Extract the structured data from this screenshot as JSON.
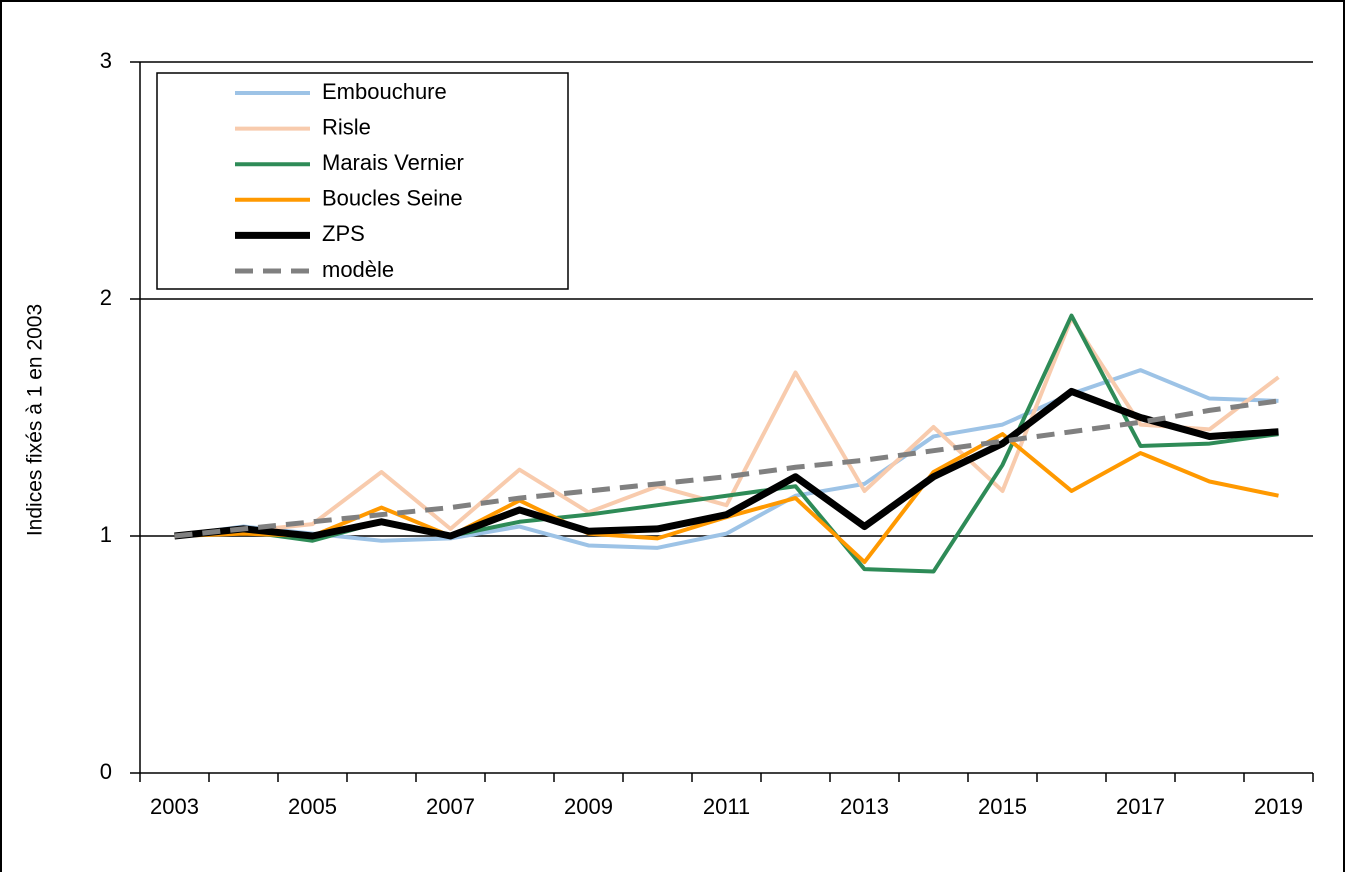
{
  "chart_data": {
    "type": "line",
    "y_label": "Indices fixés à 1 en 2003",
    "categories": [
      "2003",
      null,
      "2005",
      null,
      "2007",
      null,
      "2009",
      null,
      "2011",
      null,
      "2013",
      null,
      "2015",
      null,
      "2017",
      null,
      "2019"
    ],
    "series": [
      {
        "name": "Embouchure",
        "color": "#9dc3e6",
        "values": [
          1.0,
          1.04,
          1.01,
          0.98,
          0.99,
          1.04,
          0.96,
          0.95,
          1.01,
          1.17,
          1.22,
          1.42,
          1.47,
          1.6,
          1.7,
          1.58,
          1.57
        ]
      },
      {
        "name": "Risle",
        "color": "#f8cbad",
        "values": [
          1.0,
          1.02,
          1.05,
          1.27,
          1.03,
          1.28,
          1.1,
          1.21,
          1.13,
          1.69,
          1.19,
          1.46,
          1.19,
          1.92,
          1.47,
          1.45,
          1.67
        ]
      },
      {
        "name": "Marais Vernier",
        "color": "#2e8b57",
        "values": [
          1.0,
          1.02,
          0.98,
          1.06,
          1.0,
          1.06,
          1.09,
          1.13,
          1.17,
          1.21,
          0.86,
          0.85,
          1.3,
          1.93,
          1.38,
          1.39,
          1.43
        ]
      },
      {
        "name": "Boucles Seine",
        "color": "#ff9900",
        "values": [
          1.0,
          1.01,
          1.0,
          1.12,
          1.0,
          1.15,
          1.01,
          0.99,
          1.08,
          1.16,
          0.89,
          1.27,
          1.43,
          1.19,
          1.35,
          1.23,
          1.17
        ]
      },
      {
        "name": "ZPS",
        "color": "#000000",
        "values": [
          1.0,
          1.03,
          1.0,
          1.06,
          1.0,
          1.11,
          1.02,
          1.03,
          1.09,
          1.25,
          1.04,
          1.25,
          1.39,
          1.61,
          1.5,
          1.42,
          1.44
        ]
      },
      {
        "name": "modèle",
        "color": "#808080",
        "dashed": true,
        "values": [
          1.0,
          1.03,
          1.06,
          1.09,
          1.12,
          1.16,
          1.19,
          1.22,
          1.25,
          1.29,
          1.32,
          1.36,
          1.4,
          1.44,
          1.48,
          1.53,
          1.57
        ]
      }
    ],
    "ylim": [
      0,
      3
    ],
    "yticks": [
      0,
      1,
      2,
      3
    ],
    "grid": true,
    "legend": "top-left"
  }
}
